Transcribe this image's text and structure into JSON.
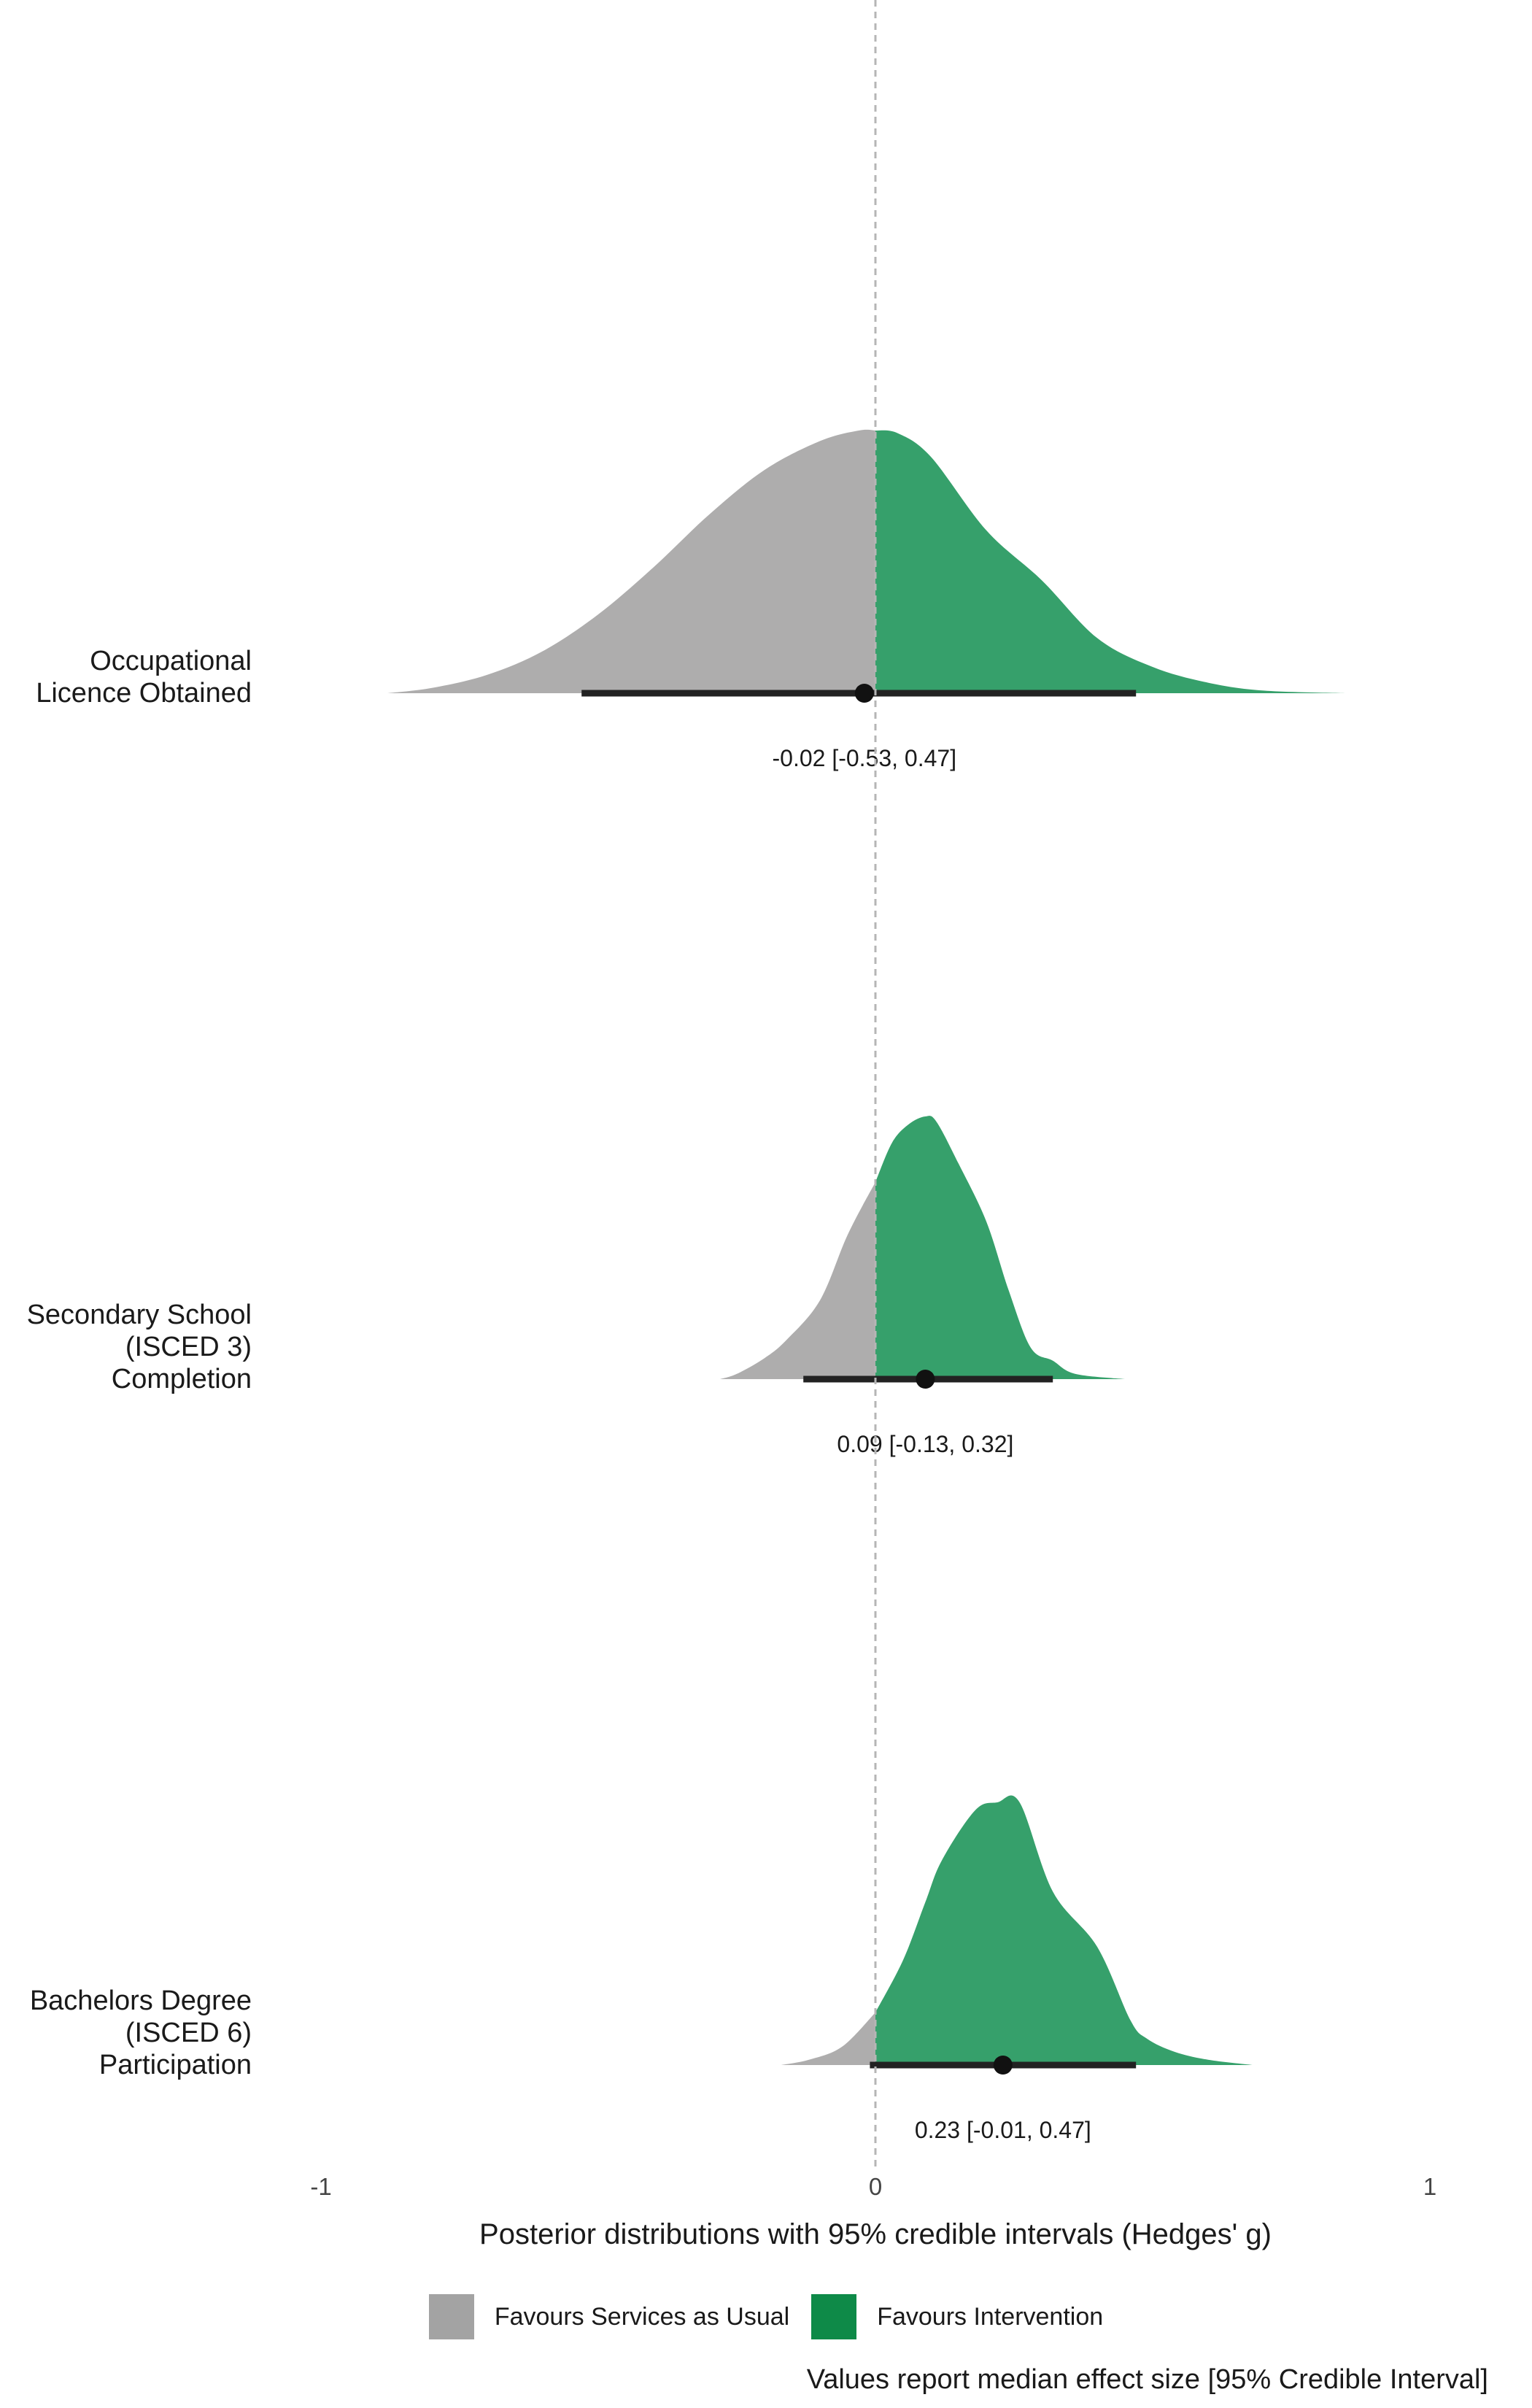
{
  "chart_data": {
    "type": "density",
    "xlabel": "Posterior distributions with 95% credible intervals (Hedges' g)",
    "xlim": [
      -1,
      1
    ],
    "x_ticks": [
      "-1",
      "0",
      "1"
    ],
    "reference_line_x": 0,
    "colors": {
      "negative": "#aeadad",
      "positive": "#36a06b",
      "interval": "#222222"
    },
    "outcomes": [
      {
        "label_lines": [
          "Occupational",
          "Licence Obtained"
        ],
        "median": -0.02,
        "lower": -0.53,
        "upper": 0.47,
        "annotation": "-0.02 [-0.53, 0.47]",
        "density": [
          [
            -0.88,
            0.0
          ],
          [
            -0.8,
            0.02
          ],
          [
            -0.7,
            0.07
          ],
          [
            -0.6,
            0.16
          ],
          [
            -0.5,
            0.3
          ],
          [
            -0.4,
            0.48
          ],
          [
            -0.3,
            0.68
          ],
          [
            -0.2,
            0.85
          ],
          [
            -0.1,
            0.96
          ],
          [
            -0.03,
            1.0
          ],
          [
            0.0,
            1.0
          ],
          [
            0.04,
            0.99
          ],
          [
            0.1,
            0.9
          ],
          [
            0.2,
            0.62
          ],
          [
            0.3,
            0.43
          ],
          [
            0.4,
            0.21
          ],
          [
            0.5,
            0.1
          ],
          [
            0.6,
            0.04
          ],
          [
            0.7,
            0.01
          ],
          [
            0.85,
            0.0
          ]
        ]
      },
      {
        "label_lines": [
          "Secondary School",
          "(ISCED 3)",
          "Completion"
        ],
        "median": 0.09,
        "lower": -0.13,
        "upper": 0.32,
        "annotation": "0.09 [-0.13, 0.32]",
        "density": [
          [
            -0.28,
            0.0
          ],
          [
            -0.25,
            0.02
          ],
          [
            -0.2,
            0.08
          ],
          [
            -0.16,
            0.15
          ],
          [
            -0.1,
            0.3
          ],
          [
            -0.05,
            0.55
          ],
          [
            0.0,
            0.75
          ],
          [
            0.03,
            0.9
          ],
          [
            0.06,
            0.97
          ],
          [
            0.09,
            1.0
          ],
          [
            0.11,
            0.98
          ],
          [
            0.15,
            0.82
          ],
          [
            0.2,
            0.6
          ],
          [
            0.24,
            0.34
          ],
          [
            0.28,
            0.12
          ],
          [
            0.32,
            0.07
          ],
          [
            0.36,
            0.02
          ],
          [
            0.45,
            0.0
          ]
        ]
      },
      {
        "label_lines": [
          "Bachelors Degree",
          "(ISCED 6)",
          "Participation"
        ],
        "median": 0.23,
        "lower": -0.01,
        "upper": 0.47,
        "annotation": "0.23 [-0.01, 0.47]",
        "density": [
          [
            -0.17,
            0.0
          ],
          [
            -0.12,
            0.02
          ],
          [
            -0.06,
            0.07
          ],
          [
            0.0,
            0.2
          ],
          [
            0.05,
            0.4
          ],
          [
            0.09,
            0.62
          ],
          [
            0.12,
            0.78
          ],
          [
            0.18,
            0.97
          ],
          [
            0.22,
            1.0
          ],
          [
            0.26,
            1.0
          ],
          [
            0.32,
            0.66
          ],
          [
            0.4,
            0.45
          ],
          [
            0.46,
            0.17
          ],
          [
            0.49,
            0.1
          ],
          [
            0.54,
            0.05
          ],
          [
            0.6,
            0.02
          ],
          [
            0.68,
            0.0
          ]
        ]
      }
    ],
    "legend": [
      {
        "label": "Favours Services as Usual",
        "color": "#a3a3a3"
      },
      {
        "label": "Favours Intervention",
        "color": "#0e8a48"
      }
    ],
    "caption": "Values report median effect size [95% Credible Interval]"
  }
}
